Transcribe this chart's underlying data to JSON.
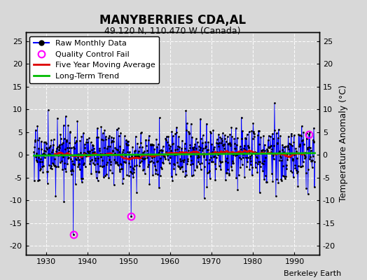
{
  "title": "MANYBERRIES CDA,AL",
  "subtitle": "49.120 N, 110.470 W (Canada)",
  "ylabel": "Temperature Anomaly (°C)",
  "attribution": "Berkeley Earth",
  "year_start": 1927,
  "year_end": 1994,
  "ylim": [
    -22,
    27
  ],
  "yticks": [
    -20,
    -15,
    -10,
    -5,
    0,
    5,
    10,
    15,
    20,
    25
  ],
  "xlim": [
    1925,
    1996
  ],
  "xticks": [
    1930,
    1940,
    1950,
    1960,
    1970,
    1980,
    1990
  ],
  "bg_color": "#d8d8d8",
  "plot_bg_color": "#d8d8d8",
  "grid_color": "#ffffff",
  "line_color": "#0000ff",
  "ma_color": "#dd0000",
  "trend_color": "#00bb00",
  "qc_color": "#ff00ff",
  "seed": 17,
  "qc_points_x": [
    1936.5,
    1950.5,
    1993.5
  ],
  "qc_points_y": [
    -17.5,
    -13.5,
    4.5
  ],
  "trend_slope": 0.008,
  "trend_intercept": 0.1
}
